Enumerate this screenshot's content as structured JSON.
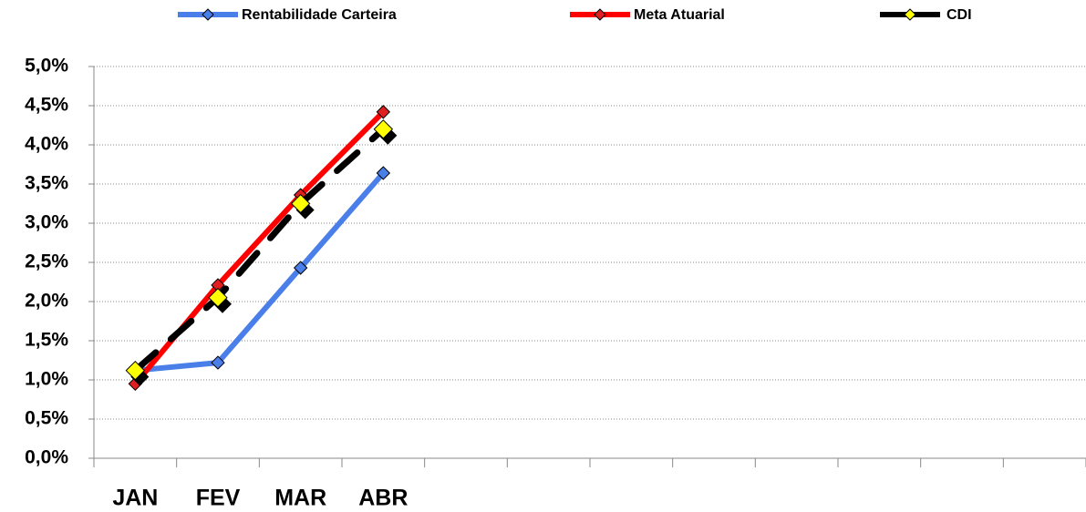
{
  "chart_data": {
    "type": "line",
    "categories": [
      "JAN",
      "FEV",
      "MAR",
      "ABR",
      null,
      null,
      null,
      null,
      null,
      null,
      null,
      null
    ],
    "series": [
      {
        "name": "Rentabilidade Carteira",
        "color": "#4a7ee8",
        "marker_color": "#4a7ee8",
        "values": [
          1.12,
          1.22,
          2.43,
          3.64,
          null,
          null,
          null,
          null,
          null,
          null,
          null,
          null
        ]
      },
      {
        "name": "Meta Atuarial",
        "color": "#ff0000",
        "marker_color": "#e02020",
        "values": [
          0.95,
          2.21,
          3.36,
          4.42,
          null,
          null,
          null,
          null,
          null,
          null,
          null,
          null
        ]
      },
      {
        "name": "CDI",
        "color": "#000000",
        "marker_color": "#ffff00",
        "values": [
          1.12,
          2.05,
          3.25,
          4.2,
          null,
          null,
          null,
          null,
          null,
          null,
          null,
          null
        ]
      }
    ],
    "ylim": [
      0,
      5
    ],
    "yticks": [
      {
        "value": 0,
        "label": "0,0%"
      },
      {
        "value": 0.5,
        "label": "0,5%"
      },
      {
        "value": 1,
        "label": "1,0%"
      },
      {
        "value": 1.5,
        "label": "1,5%"
      },
      {
        "value": 2,
        "label": "2,0%"
      },
      {
        "value": 2.5,
        "label": "2,5%"
      },
      {
        "value": 3,
        "label": "3,0%"
      },
      {
        "value": 3.5,
        "label": "3,5%"
      },
      {
        "value": 4,
        "label": "4,0%"
      },
      {
        "value": 4.5,
        "label": "4,5%"
      },
      {
        "value": 5,
        "label": "5,0%"
      }
    ],
    "grid": true,
    "legend": "top"
  }
}
